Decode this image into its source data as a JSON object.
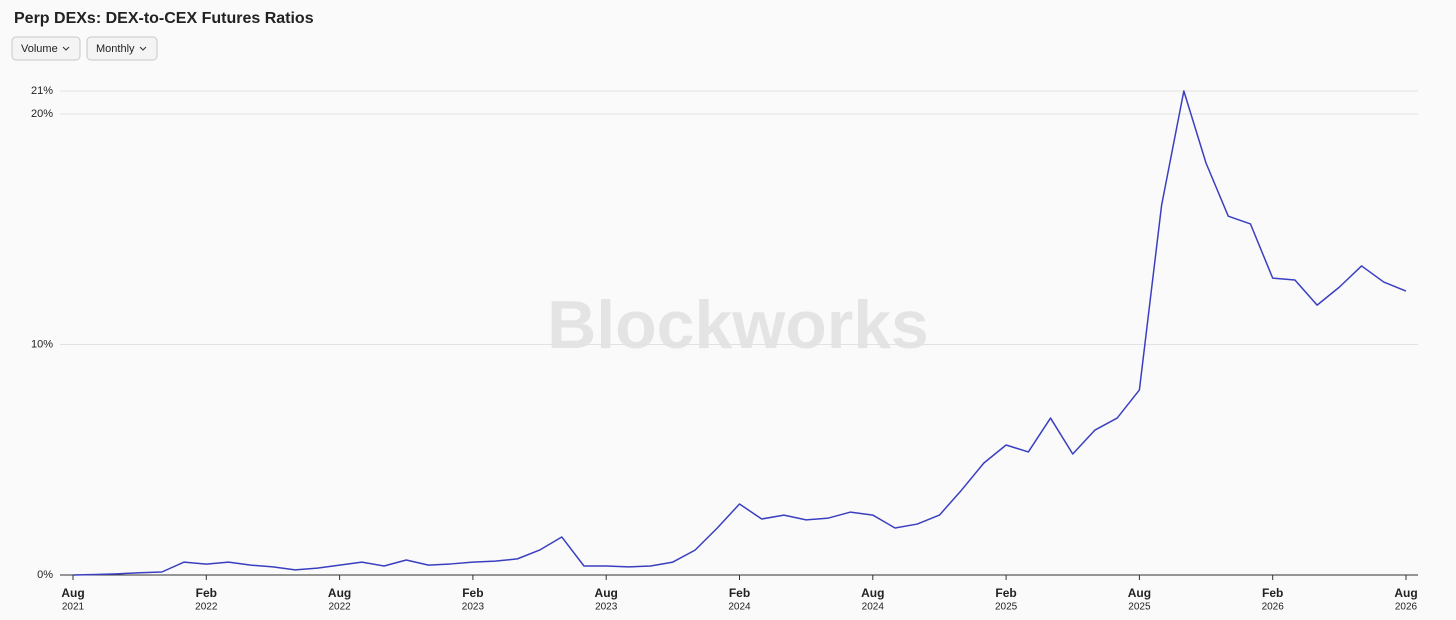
{
  "chart_data": {
    "type": "line",
    "title": "Perp DEXs: DEX-to-CEX Futures Ratios",
    "controls": [
      "Volume",
      "Monthly"
    ],
    "watermark": "Blockworks",
    "x": [
      "2021-08",
      "2021-09",
      "2021-10",
      "2021-11",
      "2021-12",
      "2022-01",
      "2022-02",
      "2022-03",
      "2022-04",
      "2022-05",
      "2022-06",
      "2022-07",
      "2022-08",
      "2022-09",
      "2022-10",
      "2022-11",
      "2022-12",
      "2023-01",
      "2023-02",
      "2023-03",
      "2023-04",
      "2023-05",
      "2023-06",
      "2023-07",
      "2023-08",
      "2023-09",
      "2023-10",
      "2023-11",
      "2023-12",
      "2024-01",
      "2024-02",
      "2024-03",
      "2024-04",
      "2024-05",
      "2024-06",
      "2024-07",
      "2024-08",
      "2024-09",
      "2024-10",
      "2024-11",
      "2024-12",
      "2025-01",
      "2025-02",
      "2025-03",
      "2025-04",
      "2025-05",
      "2025-06",
      "2025-07",
      "2025-08",
      "2025-09",
      "2025-10",
      "2025-11",
      "2025-12",
      "2026-01",
      "2026-02",
      "2026-03",
      "2026-04",
      "2026-05",
      "2026-06",
      "2026-07",
      "2026-08"
    ],
    "series": [
      {
        "color": "#3a3fc0",
        "values": [
          0.0,
          0.02,
          0.05,
          0.1,
          0.13,
          0.56,
          0.47,
          0.56,
          0.43,
          0.35,
          0.22,
          0.3,
          0.43,
          0.56,
          0.39,
          0.65,
          0.43,
          0.48,
          0.56,
          0.6,
          0.7,
          1.08,
          1.65,
          0.39,
          0.39,
          0.35,
          0.39,
          0.56,
          1.08,
          2.04,
          3.08,
          2.43,
          2.6,
          2.39,
          2.47,
          2.73,
          2.6,
          2.04,
          2.21,
          2.6,
          3.69,
          4.86,
          5.64,
          5.34,
          6.81,
          5.25,
          6.29,
          6.81,
          8.03,
          16.05,
          21.0,
          17.87,
          15.57,
          15.23,
          12.88,
          12.8,
          11.71,
          12.49,
          13.41,
          12.71,
          12.32
        ]
      }
    ],
    "xlim": [
      "2021-08",
      "2026-08"
    ],
    "xticks": [
      {
        "value": "2021-08",
        "label": [
          "Aug",
          "2021"
        ]
      },
      {
        "value": "2022-02",
        "label": [
          "Feb",
          "2022"
        ]
      },
      {
        "value": "2022-08",
        "label": [
          "Aug",
          "2022"
        ]
      },
      {
        "value": "2023-02",
        "label": [
          "Feb",
          "2023"
        ]
      },
      {
        "value": "2023-08",
        "label": [
          "Aug",
          "2023"
        ]
      },
      {
        "value": "2024-02",
        "label": [
          "Feb",
          "2024"
        ]
      },
      {
        "value": "2024-08",
        "label": [
          "Aug",
          "2024"
        ]
      },
      {
        "value": "2025-02",
        "label": [
          "Feb",
          "2025"
        ]
      },
      {
        "value": "2025-08",
        "label": [
          "Aug",
          "2025"
        ]
      },
      {
        "value": "2026-02",
        "label": [
          "Feb",
          "2026"
        ]
      },
      {
        "value": "2026-08",
        "label": [
          "Aug",
          "2026"
        ]
      }
    ],
    "ylim": [
      0,
      21
    ],
    "yticks": [
      {
        "value": 0,
        "label": "0%"
      },
      {
        "value": 10,
        "label": "10%"
      },
      {
        "value": 20,
        "label": "20%"
      },
      {
        "value": 21,
        "label": "21%"
      }
    ],
    "grid": true
  }
}
